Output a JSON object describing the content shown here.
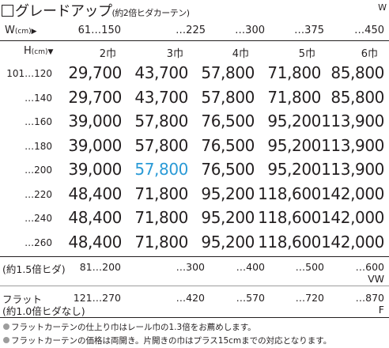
{
  "title": {
    "main": "グレードアップ",
    "sub": "(約2倍ヒダカーテン)"
  },
  "w_marker": "W",
  "width_header": {
    "label": "W",
    "unit": "(cm)",
    "arrow": "▶",
    "ranges": [
      "61…150",
      "…225",
      "…300",
      "…375",
      "…450"
    ]
  },
  "height_header": {
    "label": "H",
    "unit": "(cm)",
    "arrow": "▼",
    "panels": [
      "2巾",
      "3巾",
      "4巾",
      "5巾",
      "6巾"
    ]
  },
  "rows": [
    {
      "label": "101…120",
      "prices": [
        "29,700",
        "43,700",
        "57,800",
        "71,800",
        "85,800"
      ]
    },
    {
      "label": "…140",
      "prices": [
        "29,700",
        "43,700",
        "57,800",
        "71,800",
        "85,800"
      ]
    },
    {
      "label": "…160",
      "prices": [
        "39,000",
        "57,800",
        "76,500",
        "95,200",
        "113,900"
      ]
    },
    {
      "label": "…180",
      "prices": [
        "39,000",
        "57,800",
        "76,500",
        "95,200",
        "113,900"
      ]
    },
    {
      "label": "…200",
      "prices": [
        "39,000",
        "57,800",
        "76,500",
        "95,200",
        "113,900"
      ]
    },
    {
      "label": "…220",
      "prices": [
        "48,400",
        "71,800",
        "95,200",
        "118,600",
        "142,000"
      ]
    },
    {
      "label": "…240",
      "prices": [
        "48,400",
        "71,800",
        "95,200",
        "118,600",
        "142,000"
      ]
    },
    {
      "label": "…260",
      "prices": [
        "48,400",
        "71,800",
        "95,200",
        "118,600",
        "142,000"
      ]
    }
  ],
  "highlight_color": "#2a9ad6",
  "fold15": {
    "label": "(約1.5倍ヒダ)",
    "ranges": [
      "81…200",
      "…300",
      "…400",
      "…500",
      "…600"
    ],
    "unit_mark": "VW"
  },
  "flat": {
    "label_line1": "フラット",
    "label_line2": "(約1.0倍ヒダなし)",
    "ranges": [
      "121…270",
      "…420",
      "…570",
      "…720",
      "…870"
    ],
    "unit_mark": "F"
  },
  "notes": [
    "フラットカーテンの仕上り巾はレール巾の1.3倍をお薦めします。",
    "フラットカーテンの価格は両開き。片開きの巾はプラス15cmまでの対応となります。"
  ]
}
